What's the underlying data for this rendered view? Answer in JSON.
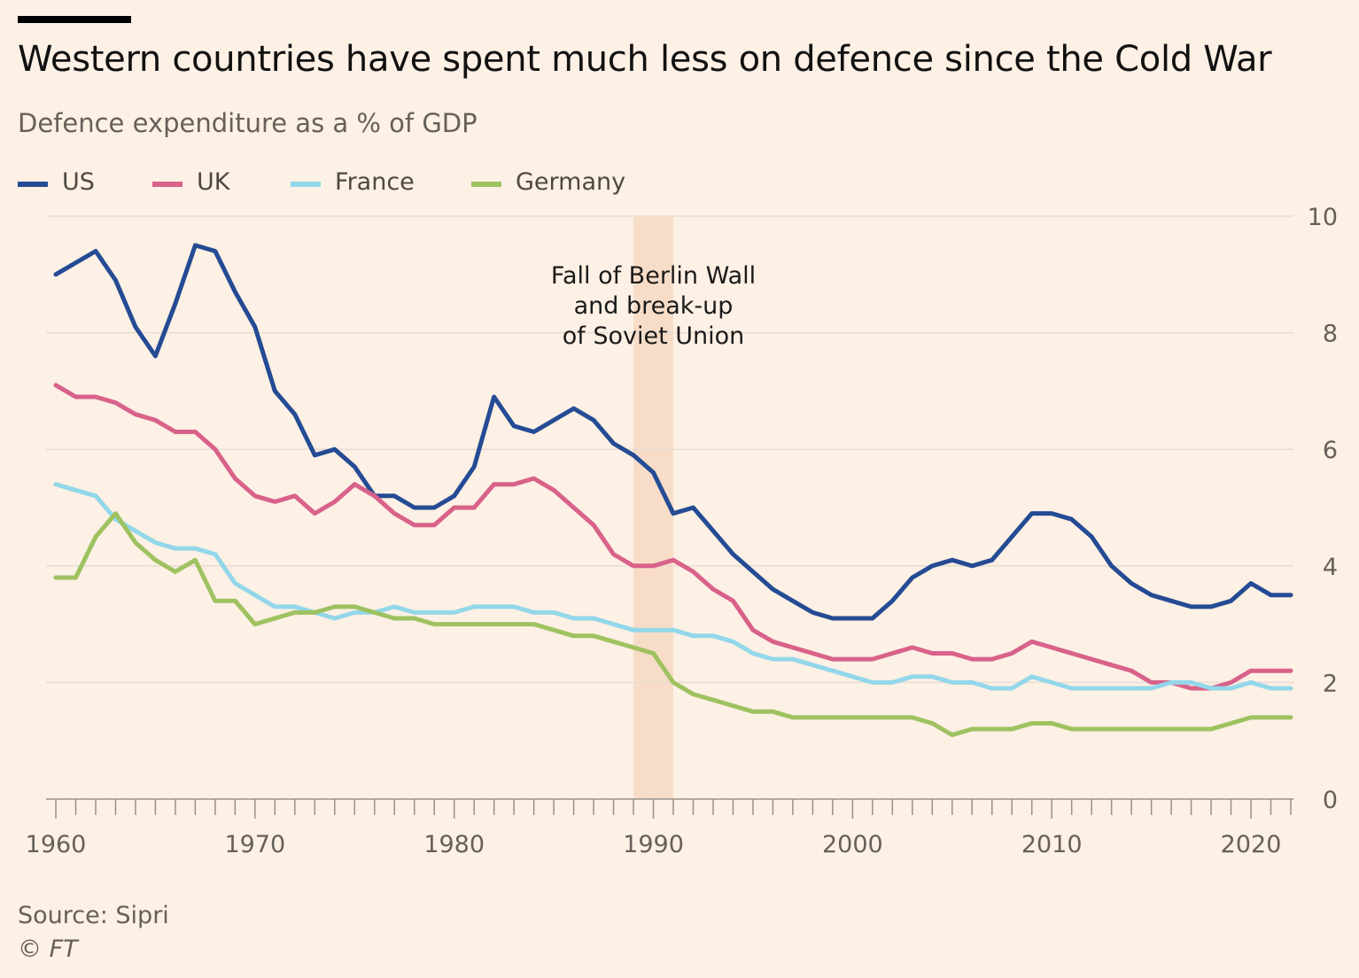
{
  "header": {
    "title": "Western countries have spent much less on defence since the Cold War",
    "subtitle": "Defence expenditure as a % of GDP"
  },
  "footer": {
    "source": "Source: Sipri",
    "copyright": "© FT"
  },
  "colors": {
    "background": "#fdf0e4",
    "gridline": "#e8ddd3",
    "highlight_band": "#f7ddc8",
    "text": "#66605a"
  },
  "chart_data": {
    "type": "line",
    "title": "Western countries have spent much less on defence since the Cold War",
    "subtitle": "Defence expenditure as a % of GDP",
    "xlabel": "",
    "ylabel": "",
    "xlim": [
      1960,
      2022
    ],
    "ylim": [
      0,
      10
    ],
    "x_ticks": [
      1960,
      1970,
      1980,
      1990,
      2000,
      2010,
      2020
    ],
    "y_ticks": [
      0,
      2,
      4,
      6,
      8,
      10
    ],
    "y_axis_side": "right",
    "grid": true,
    "legend_position": "top-left",
    "highlight": {
      "x_start": 1989,
      "x_end": 1991,
      "label_lines": [
        "Fall of Berlin Wall",
        "and break-up",
        "of Soviet Union"
      ]
    },
    "x": [
      1960,
      1961,
      1962,
      1963,
      1964,
      1965,
      1966,
      1967,
      1968,
      1969,
      1970,
      1971,
      1972,
      1973,
      1974,
      1975,
      1976,
      1977,
      1978,
      1979,
      1980,
      1981,
      1982,
      1983,
      1984,
      1985,
      1986,
      1987,
      1988,
      1989,
      1990,
      1991,
      1992,
      1993,
      1994,
      1995,
      1996,
      1997,
      1998,
      1999,
      2000,
      2001,
      2002,
      2003,
      2004,
      2005,
      2006,
      2007,
      2008,
      2009,
      2010,
      2011,
      2012,
      2013,
      2014,
      2015,
      2016,
      2017,
      2018,
      2019,
      2020,
      2021,
      2022
    ],
    "series": [
      {
        "name": "US",
        "color": "#244b94",
        "values": [
          9.0,
          9.2,
          9.4,
          8.9,
          8.1,
          7.6,
          8.5,
          9.5,
          9.4,
          8.7,
          8.1,
          7.0,
          6.6,
          5.9,
          6.0,
          5.7,
          5.2,
          5.2,
          5.0,
          5.0,
          5.2,
          5.7,
          6.9,
          6.4,
          6.3,
          6.5,
          6.7,
          6.5,
          6.1,
          5.9,
          5.6,
          4.9,
          5.0,
          4.6,
          4.2,
          3.9,
          3.6,
          3.4,
          3.2,
          3.1,
          3.1,
          3.1,
          3.4,
          3.8,
          4.0,
          4.1,
          4.0,
          4.1,
          4.5,
          4.9,
          4.9,
          4.8,
          4.5,
          4.0,
          3.7,
          3.5,
          3.4,
          3.3,
          3.3,
          3.4,
          3.7,
          3.5,
          3.5
        ]
      },
      {
        "name": "UK",
        "color": "#d8628a",
        "values": [
          7.1,
          6.9,
          6.9,
          6.8,
          6.6,
          6.5,
          6.3,
          6.3,
          6.0,
          5.5,
          5.2,
          5.1,
          5.2,
          4.9,
          5.1,
          5.4,
          5.2,
          4.9,
          4.7,
          4.7,
          5.0,
          5.0,
          5.4,
          5.4,
          5.5,
          5.3,
          5.0,
          4.7,
          4.2,
          4.0,
          4.0,
          4.1,
          3.9,
          3.6,
          3.4,
          2.9,
          2.7,
          2.6,
          2.5,
          2.4,
          2.4,
          2.4,
          2.5,
          2.6,
          2.5,
          2.5,
          2.4,
          2.4,
          2.5,
          2.7,
          2.6,
          2.5,
          2.4,
          2.3,
          2.2,
          2.0,
          2.0,
          1.9,
          1.9,
          2.0,
          2.2,
          2.2,
          2.2
        ]
      },
      {
        "name": "France",
        "color": "#92d7ea",
        "values": [
          5.4,
          5.3,
          5.2,
          4.8,
          4.6,
          4.4,
          4.3,
          4.3,
          4.2,
          3.7,
          3.5,
          3.3,
          3.3,
          3.2,
          3.1,
          3.2,
          3.2,
          3.3,
          3.2,
          3.2,
          3.2,
          3.3,
          3.3,
          3.3,
          3.2,
          3.2,
          3.1,
          3.1,
          3.0,
          2.9,
          2.9,
          2.9,
          2.8,
          2.8,
          2.7,
          2.5,
          2.4,
          2.4,
          2.3,
          2.2,
          2.1,
          2.0,
          2.0,
          2.1,
          2.1,
          2.0,
          2.0,
          1.9,
          1.9,
          2.1,
          2.0,
          1.9,
          1.9,
          1.9,
          1.9,
          1.9,
          2.0,
          2.0,
          1.9,
          1.9,
          2.0,
          1.9,
          1.9
        ]
      },
      {
        "name": "Germany",
        "color": "#9fc261",
        "values": [
          3.8,
          3.8,
          4.5,
          4.9,
          4.4,
          4.1,
          3.9,
          4.1,
          3.4,
          3.4,
          3.0,
          3.1,
          3.2,
          3.2,
          3.3,
          3.3,
          3.2,
          3.1,
          3.1,
          3.0,
          3.0,
          3.0,
          3.0,
          3.0,
          3.0,
          2.9,
          2.8,
          2.8,
          2.7,
          2.6,
          2.5,
          2.0,
          1.8,
          1.7,
          1.6,
          1.5,
          1.5,
          1.4,
          1.4,
          1.4,
          1.4,
          1.4,
          1.4,
          1.4,
          1.3,
          1.1,
          1.2,
          1.2,
          1.2,
          1.3,
          1.3,
          1.2,
          1.2,
          1.2,
          1.2,
          1.2,
          1.2,
          1.2,
          1.2,
          1.3,
          1.4,
          1.4,
          1.4
        ]
      }
    ]
  }
}
